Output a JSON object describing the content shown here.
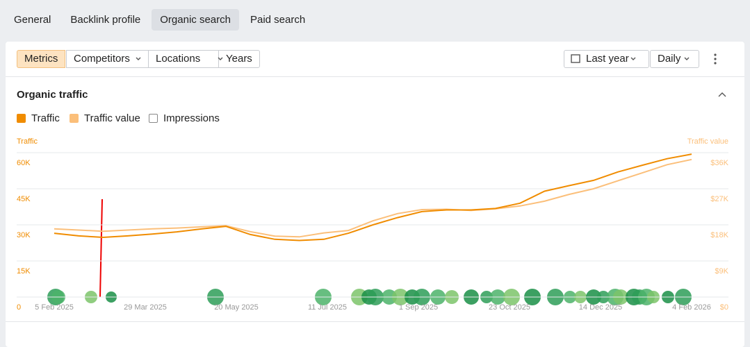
{
  "tabs": [
    "General",
    "Backlink profile",
    "Organic search",
    "Paid search"
  ],
  "toolbar": {
    "metrics": "Metrics",
    "competitors": "Competitors",
    "locations": "Locations",
    "years": "Years",
    "period": "Last year",
    "interval": "Daily"
  },
  "section": {
    "title": "Organic traffic",
    "checks": [
      "Traffic",
      "Traffic value",
      "Impressions"
    ]
  },
  "chart_data": {
    "type": "line",
    "y_label": "Traffic",
    "y2_label": "Traffic value",
    "x": [
      "2025-02-05",
      "2025-02-19",
      "2025-03-05",
      "2025-03-19",
      "2025-04-02",
      "2025-04-16",
      "2025-04-30",
      "2025-05-14",
      "2025-05-28",
      "2025-06-11",
      "2025-06-25",
      "2025-07-09",
      "2025-07-23",
      "2025-08-06",
      "2025-08-20",
      "2025-09-03",
      "2025-09-17",
      "2025-10-01",
      "2025-10-15",
      "2025-10-29",
      "2025-11-12",
      "2025-11-26",
      "2025-12-10",
      "2025-12-24",
      "2026-01-07",
      "2026-01-21",
      "2026-02-04"
    ],
    "series": [
      {
        "name": "Traffic",
        "color": "#f08c00",
        "values": [
          26500,
          25400,
          24800,
          25400,
          26200,
          27100,
          28300,
          29400,
          26000,
          24000,
          23500,
          24000,
          26500,
          30000,
          33000,
          35500,
          36200,
          36200,
          36800,
          39000,
          44000,
          46300,
          48500,
          52000,
          54800,
          57500,
          59400
        ]
      },
      {
        "name": "Traffic value",
        "color": "#fbbf7a",
        "axis": "y2",
        "values": [
          17000,
          16700,
          16400,
          16700,
          17000,
          17200,
          17500,
          17800,
          16300,
          15200,
          15000,
          16000,
          16600,
          19000,
          20800,
          21800,
          21900,
          21600,
          22000,
          22700,
          23900,
          25600,
          27000,
          29000,
          31000,
          33000,
          34300
        ]
      }
    ],
    "xlim": [
      "2025-02-05",
      "2026-02-04"
    ],
    "xticks": [
      {
        "value": "2025-02-05",
        "label": "5 Feb 2025"
      },
      {
        "value": "2025-03-29",
        "label": "29 Mar 2025"
      },
      {
        "value": "2025-05-20",
        "label": "20 May 2025"
      },
      {
        "value": "2025-07-11",
        "label": "11 Jul 2025"
      },
      {
        "value": "2025-09-01",
        "label": "1 Sep 2025"
      },
      {
        "value": "2025-10-23",
        "label": "23 Oct 2025"
      },
      {
        "value": "2025-12-14",
        "label": "14 Dec 2025"
      },
      {
        "value": "2026-02-04",
        "label": "4 Feb 2026"
      }
    ],
    "ylim": [
      0,
      60000
    ],
    "yticks": [
      0,
      {
        "value": 15000,
        "label": "15K"
      },
      {
        "value": 30000,
        "label": "30K"
      },
      {
        "value": 45000,
        "label": "45K"
      },
      {
        "value": 60000,
        "label": "60K"
      }
    ],
    "y2lim": [
      0,
      36000
    ],
    "y2ticks": [
      {
        "value": 0,
        "label": "$0"
      },
      {
        "value": 9000,
        "label": "$9K"
      },
      {
        "value": 18000,
        "label": "$18K"
      },
      {
        "value": 27000,
        "label": "$27K"
      },
      {
        "value": 36000,
        "label": "$36K"
      }
    ],
    "grid": true
  }
}
